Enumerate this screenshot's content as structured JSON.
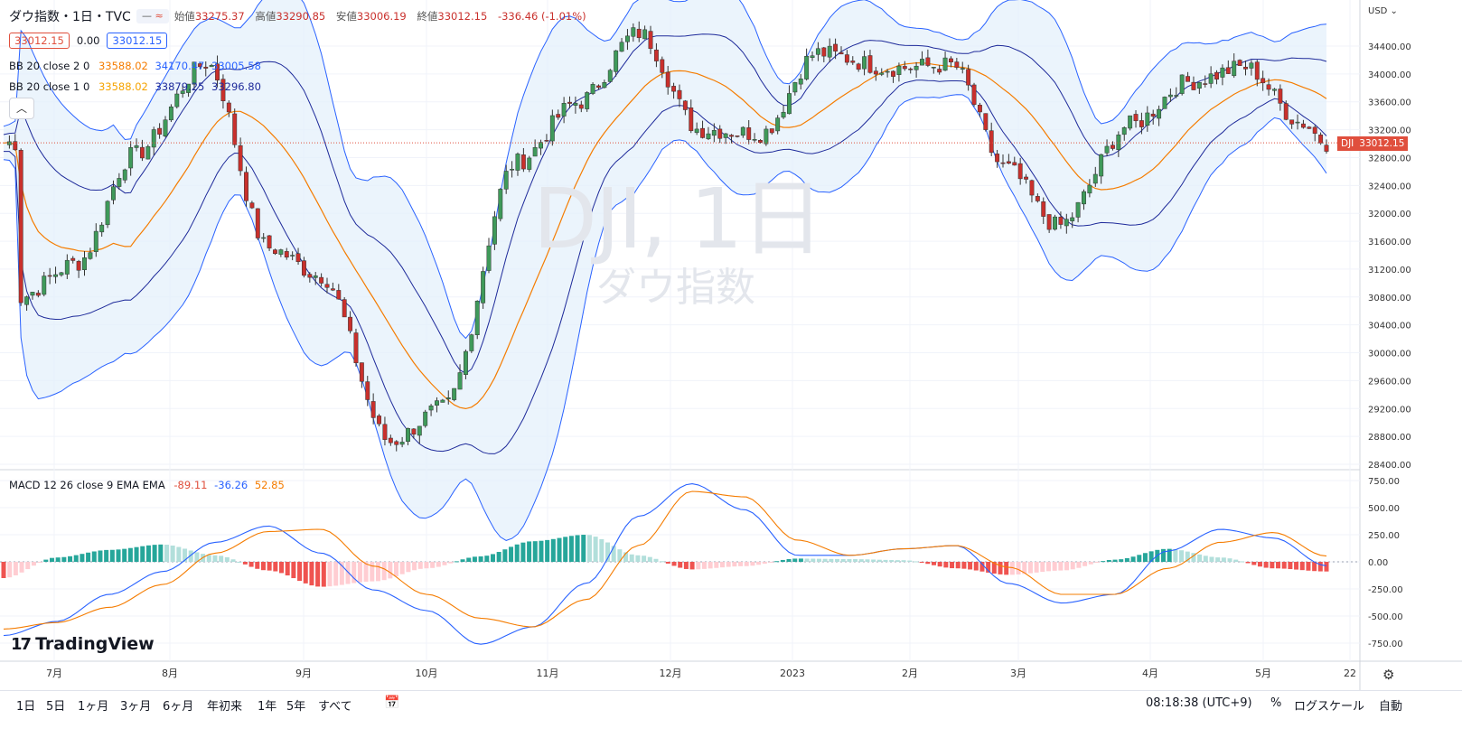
{
  "header": {
    "title": "ダウ指数・1日・TVC",
    "ohlc_open_label": "始値",
    "ohlc_open": "33275.37",
    "ohlc_high_label": "高値",
    "ohlc_high": "33290.85",
    "ohlc_low_label": "安値",
    "ohlc_low": "33006.19",
    "ohlc_close_label": "終値",
    "ohlc_close": "33012.15",
    "ohlc_change": "-336.46 (-1.01%)",
    "sell_price": "33012.15",
    "spread": "0.00",
    "buy_price": "33012.15"
  },
  "indicators": {
    "bb2": {
      "label": "BB 20 close 2 0",
      "basis": "33588.02",
      "upper": "34170.47",
      "lower": "33005.58"
    },
    "bb1": {
      "label": "BB 20 close 1 0",
      "basis": "33588.02",
      "upper": "33879.25",
      "lower": "33296.80"
    },
    "macd": {
      "label": "MACD 12 26 close 9 EMA EMA",
      "hist": "-89.11",
      "macd": "-36.26",
      "signal": "52.85"
    }
  },
  "watermark": {
    "symbol": "DJI, 1日",
    "name": "ダウ指数"
  },
  "currency": "USD",
  "last_price_tag": {
    "symbol": "DJI",
    "price": "33012.15"
  },
  "colors": {
    "up": "#26a69a",
    "up_candle": "#3f9a5a",
    "down": "#c9302c",
    "orange": "#f57c00",
    "blue": "#2962ff",
    "bb_fill": "#e3f0fb"
  },
  "bottom": {
    "ranges": [
      "1日",
      "5日",
      "1ヶ月",
      "3ヶ月",
      "6ヶ月",
      "年初来",
      "1年",
      "5年",
      "すべて"
    ],
    "time": "08:18:38 (UTC+9)",
    "percent": "%",
    "log": "ログスケール",
    "auto": "自動"
  },
  "brand": "TradingView",
  "chart_data": [
    {
      "type": "line",
      "title": "ダウ指数・1日・TVC",
      "x_ticks": [
        "7月",
        "8月",
        "9月",
        "10月",
        "11月",
        "12月",
        "2023",
        "2月",
        "3月",
        "4月",
        "5月",
        "22"
      ],
      "y_ticks": [
        28400,
        28800,
        29200,
        29600,
        30000,
        30400,
        30800,
        31200,
        31600,
        32000,
        32400,
        32800,
        33200,
        33600,
        34000,
        34400
      ],
      "ylim": [
        28400,
        34800
      ],
      "series_points": [
        [
          "2022-06-30",
          30775
        ],
        [
          "2022-07-15",
          31288
        ],
        [
          "2022-07-29",
          32845
        ],
        [
          "2022-08-16",
          34152
        ],
        [
          "2022-08-31",
          31510
        ],
        [
          "2022-09-13",
          31105
        ],
        [
          "2022-09-30",
          28725
        ],
        [
          "2022-10-13",
          29210
        ],
        [
          "2022-10-31",
          32733
        ],
        [
          "2022-11-15",
          33592
        ],
        [
          "2022-11-30",
          34590
        ],
        [
          "2022-12-15",
          33202
        ],
        [
          "2022-12-30",
          33147
        ],
        [
          "2023-01-13",
          34302
        ],
        [
          "2023-01-31",
          34086
        ],
        [
          "2023-02-15",
          34128
        ],
        [
          "2023-02-28",
          32656
        ],
        [
          "2023-03-13",
          31819
        ],
        [
          "2023-03-31",
          33274
        ],
        [
          "2023-04-14",
          33886
        ],
        [
          "2023-04-28",
          34098
        ],
        [
          "2023-05-12",
          33300
        ],
        [
          "2023-05-18",
          33012
        ]
      ],
      "bands": {
        "basis": "orange",
        "upper_lower_1": "blue",
        "upper_lower_2": "blue"
      }
    },
    {
      "type": "bar",
      "title": "MACD 12 26 close 9 EMA EMA",
      "y_ticks": [
        750,
        500,
        250,
        0,
        -250,
        -500,
        -750
      ],
      "ylim": [
        -850,
        800
      ],
      "series": [
        {
          "name": "histogram",
          "values": [
            -150,
            40,
            110,
            160,
            60,
            -80,
            -230,
            -180,
            -60,
            50,
            190,
            250,
            60,
            -70,
            -40,
            30,
            25,
            15,
            -60,
            -120,
            -80,
            20,
            120,
            40,
            -60,
            -89
          ]
        },
        {
          "name": "macd",
          "values": [
            -680,
            -550,
            -300,
            -90,
            180,
            330,
            80,
            -260,
            -450,
            -760,
            -600,
            -200,
            420,
            720,
            480,
            60,
            60,
            120,
            150,
            -200,
            -380,
            -300,
            100,
            300,
            220,
            -36
          ]
        },
        {
          "name": "signal",
          "values": [
            -620,
            -560,
            -420,
            -210,
            80,
            280,
            300,
            -40,
            -300,
            -520,
            -600,
            -350,
            150,
            650,
            600,
            200,
            60,
            120,
            150,
            -50,
            -300,
            -300,
            -60,
            180,
            270,
            53
          ]
        }
      ]
    }
  ]
}
